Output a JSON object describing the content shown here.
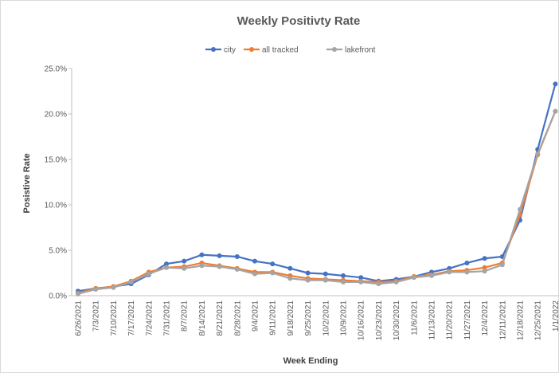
{
  "chart_data": {
    "type": "line",
    "title": "Weekly Positivty Rate",
    "x_label": "Week Ending",
    "y_label": "Posistive Rate",
    "categories": [
      "6/26/2021",
      "7/3/2021",
      "7/10/2021",
      "7/17/2021",
      "7/24/2021",
      "7/31/2021",
      "8/7/2021",
      "8/14/2021",
      "8/21/2021",
      "8/28/2021",
      "9/4/2021",
      "9/11/2021",
      "9/18/2021",
      "9/25/2021",
      "10/2/2021",
      "10/9/2021",
      "10/16/2021",
      "10/23/2021",
      "10/30/2021",
      "11/6/2021",
      "11/13/2021",
      "11/20/2021",
      "11/27/2021",
      "12/4/2021",
      "12/11/2021",
      "12/18/2021",
      "12/25/2021",
      "1/1/2022"
    ],
    "series": [
      {
        "name": "city",
        "color": "#4472c4",
        "values": [
          0.5,
          0.8,
          1.0,
          1.3,
          2.3,
          3.5,
          3.8,
          4.5,
          4.4,
          4.3,
          3.8,
          3.5,
          3.0,
          2.5,
          2.4,
          2.2,
          2.0,
          1.6,
          1.8,
          2.1,
          2.6,
          3.0,
          3.6,
          4.1,
          4.3,
          8.3,
          16.1,
          23.3
        ]
      },
      {
        "name": "all tracked",
        "color": "#ed7d31",
        "values": [
          0.3,
          0.8,
          1.0,
          1.6,
          2.6,
          3.1,
          3.2,
          3.6,
          3.3,
          3.0,
          2.6,
          2.6,
          2.2,
          1.9,
          1.8,
          1.7,
          1.6,
          1.5,
          1.6,
          2.1,
          2.3,
          2.7,
          2.8,
          3.1,
          3.6,
          8.9,
          15.5,
          20.3
        ]
      },
      {
        "name": "lakefront",
        "color": "#a5a5a5",
        "values": [
          0.2,
          0.7,
          0.9,
          1.5,
          2.4,
          3.1,
          3.0,
          3.3,
          3.2,
          2.9,
          2.4,
          2.5,
          1.9,
          1.7,
          1.7,
          1.5,
          1.5,
          1.3,
          1.5,
          2.0,
          2.2,
          2.6,
          2.6,
          2.7,
          3.4,
          9.5,
          15.6,
          20.3
        ]
      }
    ],
    "ylim": [
      0,
      25
    ],
    "yticks": [
      {
        "value": 0,
        "label": "0.0%"
      },
      {
        "value": 5,
        "label": "5.0%"
      },
      {
        "value": 10,
        "label": "10.0%"
      },
      {
        "value": 15,
        "label": "15.0%"
      },
      {
        "value": 20,
        "label": "20.0%"
      },
      {
        "value": 25,
        "label": "25.0%"
      }
    ],
    "grid": false,
    "legend": "top"
  }
}
